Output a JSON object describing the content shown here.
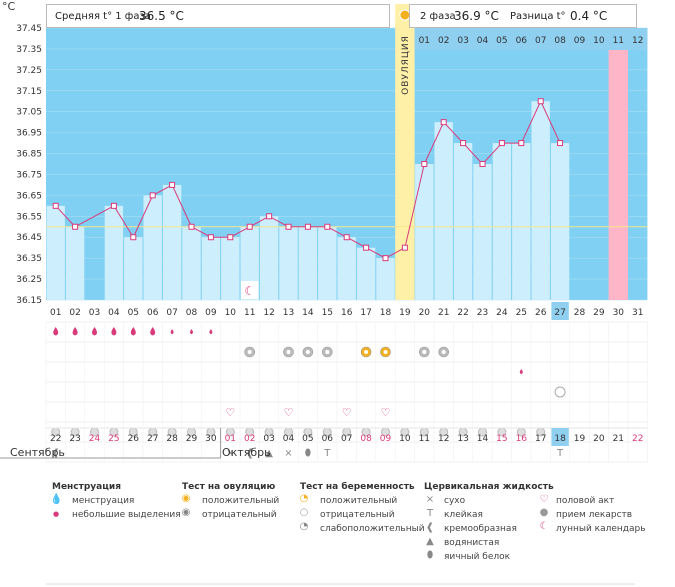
{
  "y_axis_unit": "°C",
  "phase1": {
    "label": "Средняя t° 1 фаза",
    "value": "36.5 °C"
  },
  "phase2": {
    "label": "2 фаза",
    "value": "36.9 °C"
  },
  "diff": {
    "label": "Разница t°",
    "value": "0.4 °C"
  },
  "ovulation_label": "ОВУЛЯЦИЯ",
  "colors": {
    "sky": "#7fd0f2",
    "bar": "#cdeefc",
    "line": "#d93a7a",
    "ovulation": "#fff0a8",
    "pink": "#ffb5c8",
    "header_highlight": "#8fcff0"
  },
  "months": [
    "Сентябрь",
    "Октябрь"
  ],
  "chart_data": {
    "type": "line",
    "ylim": [
      36.15,
      37.45
    ],
    "yticks": [
      "37.45",
      "37.35",
      "37.25",
      "37.15",
      "37.05",
      "36.95",
      "36.85",
      "36.75",
      "36.65",
      "36.55",
      "36.45",
      "36.35",
      "36.25",
      "36.15"
    ],
    "cycle_days": [
      "01",
      "02",
      "03",
      "04",
      "05",
      "06",
      "07",
      "08",
      "09",
      "10",
      "11",
      "12",
      "13",
      "14",
      "15",
      "16",
      "17",
      "18",
      "19",
      "20",
      "21",
      "22",
      "23",
      "24",
      "25",
      "26",
      "27",
      "28",
      "29",
      "30",
      "31"
    ],
    "calendar_days": [
      "22",
      "23",
      "24",
      "25",
      "26",
      "27",
      "28",
      "29",
      "30",
      "01",
      "02",
      "03",
      "04",
      "05",
      "06",
      "07",
      "08",
      "09",
      "10",
      "11",
      "12",
      "13",
      "14",
      "15",
      "16",
      "17",
      "18",
      "19",
      "20",
      "21",
      "22"
    ],
    "calendar_red": [
      false,
      false,
      true,
      true,
      false,
      false,
      false,
      false,
      false,
      true,
      true,
      false,
      false,
      false,
      false,
      false,
      true,
      true,
      false,
      false,
      false,
      false,
      false,
      true,
      true,
      false,
      false,
      false,
      false,
      false,
      true
    ],
    "second_phase_days": [
      "01",
      "02",
      "03",
      "04",
      "05",
      "06",
      "07",
      "08",
      "09",
      "10",
      "11",
      "12"
    ],
    "series": [
      {
        "values": [
          36.6,
          36.5,
          null,
          36.6,
          36.45,
          36.65,
          36.7,
          36.5,
          36.45,
          36.45,
          36.5,
          36.55,
          36.5,
          36.5,
          36.5,
          36.45,
          36.4,
          36.35,
          36.4,
          36.8,
          37.0,
          36.9,
          36.8,
          36.9,
          36.9,
          37.1,
          36.9,
          null,
          null,
          null,
          null
        ],
        "dashed_segments": [
          [
            2,
            4
          ]
        ]
      }
    ],
    "ovulation_day_index": 18,
    "current_day_index": 26,
    "highlight_header_index": 29,
    "cover_line": 36.5,
    "moon_day_index": 10
  },
  "rows": {
    "menstruation": [
      "big",
      "big",
      "big",
      "big",
      "big",
      "big",
      "small",
      "small",
      "small",
      "",
      "",
      "",
      "",
      "",
      "",
      "",
      "",
      "",
      "",
      "",
      "",
      "",
      "",
      "",
      "",
      "",
      "",
      "",
      "",
      "",
      ""
    ],
    "ov_test": [
      "",
      "",
      "",
      "",
      "",
      "",
      "",
      "",
      "",
      "",
      "neg",
      "",
      "neg",
      "neg",
      "neg",
      "",
      "pos",
      "pos",
      "",
      "neg",
      "neg",
      "",
      "",
      "",
      "",
      "",
      "",
      "",
      "",
      "",
      ""
    ],
    "extra_small": [
      "",
      "",
      "",
      "",
      "",
      "",
      "",
      "",
      "",
      "",
      "",
      "",
      "",
      "",
      "",
      "",
      "",
      "",
      "",
      "",
      "",
      "",
      "",
      "",
      "small",
      "",
      "",
      "",
      "",
      "",
      ""
    ],
    "preg_test": [
      "",
      "",
      "",
      "",
      "",
      "",
      "",
      "",
      "",
      "",
      "",
      "",
      "",
      "",
      "",
      "",
      "",
      "",
      "",
      "",
      "",
      "",
      "",
      "",
      "",
      "",
      "neg",
      "",
      "",
      "",
      ""
    ],
    "intercourse": [
      "",
      "",
      "",
      "",
      "",
      "",
      "",
      "",
      "",
      "heart",
      "",
      "",
      "heart",
      "",
      "",
      "heart",
      "",
      "heart",
      "",
      "",
      "",
      "",
      "",
      "",
      "",
      "",
      "",
      "",
      "",
      "",
      ""
    ],
    "medicine": [
      "pill",
      "pill",
      "pill",
      "pill",
      "pill",
      "pill",
      "pill",
      "pill",
      "pill",
      "pill",
      "pill",
      "pill",
      "pill",
      "pill",
      "pill",
      "pill",
      "pill",
      "pill",
      "pill",
      "pill",
      "pill",
      "pill",
      "pill",
      "pill",
      "pill",
      "pill",
      "pill",
      "",
      "",
      "",
      ""
    ],
    "fluid": [
      "creamy",
      "",
      "",
      "",
      "",
      "",
      "",
      "",
      "",
      "dry",
      "creamy",
      "water",
      "dry",
      "eggwhite",
      "sticky",
      "",
      "",
      "",
      "",
      "",
      "",
      "",
      "",
      "",
      "",
      "",
      "sticky",
      "",
      "",
      "",
      ""
    ]
  },
  "legend": {
    "menstruation": {
      "title": "Менструация",
      "items": [
        "менструация",
        "небольшие выделения"
      ]
    },
    "ovulation_test": {
      "title": "Тест на овуляцию",
      "items": [
        "положительный",
        "отрицательный"
      ]
    },
    "pregnancy_test": {
      "title": "Тест на беременность",
      "items": [
        "положительный",
        "отрицательный",
        "слабоположительный"
      ]
    },
    "cervical": {
      "title": "Цервикальная жидкость",
      "items": [
        "сухо",
        "клейкая",
        "кремообразная",
        "водянистая",
        "яичный белок"
      ]
    },
    "other": {
      "items": [
        "половой акт",
        "прием лекарств",
        "лунный календарь"
      ]
    }
  }
}
